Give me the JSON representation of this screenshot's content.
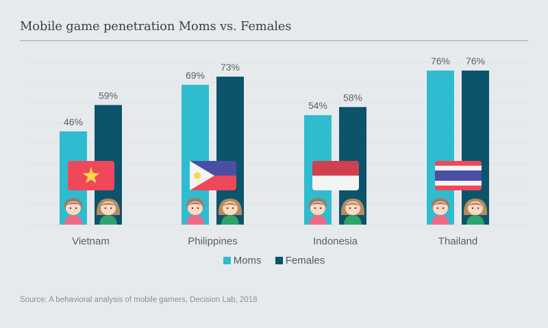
{
  "header": {
    "title": "Mobile game penetration Moms vs. Females"
  },
  "colors": {
    "moms": "#2fbccf",
    "females": "#0b546b",
    "background": "#e7eaed",
    "label": "#5a5e63"
  },
  "chart_data": {
    "type": "bar",
    "title": "Mobile game penetration Moms vs. Females",
    "xlabel": "",
    "ylabel": "",
    "ylim": [
      0,
      100
    ],
    "grid": true,
    "legend_position": "bottom-center",
    "categories": [
      "Vietnam",
      "Philippines",
      "Indonesia",
      "Thailand"
    ],
    "series": [
      {
        "name": "Moms",
        "values": [
          46,
          69,
          54,
          76
        ],
        "labels": [
          "46%",
          "69%",
          "54%",
          "76%"
        ]
      },
      {
        "name": "Females",
        "values": [
          59,
          73,
          58,
          76
        ],
        "labels": [
          "59%",
          "73%",
          "58%",
          "76%"
        ]
      }
    ],
    "annotations": [
      "country flag icons",
      "mom icon on Moms bars",
      "girl icon on Females bars"
    ]
  },
  "legend": {
    "items": [
      {
        "label": "Moms"
      },
      {
        "label": "Females"
      }
    ]
  },
  "footer": {
    "source": "Source: A behavioral analysis of mobile gamers, Decision Lab, 2018"
  },
  "icons": {
    "flags": [
      "vietnam-flag-icon",
      "philippines-flag-icon",
      "indonesia-flag-icon",
      "thailand-flag-icon"
    ],
    "mom": "mom-icon",
    "female": "girl-icon"
  }
}
